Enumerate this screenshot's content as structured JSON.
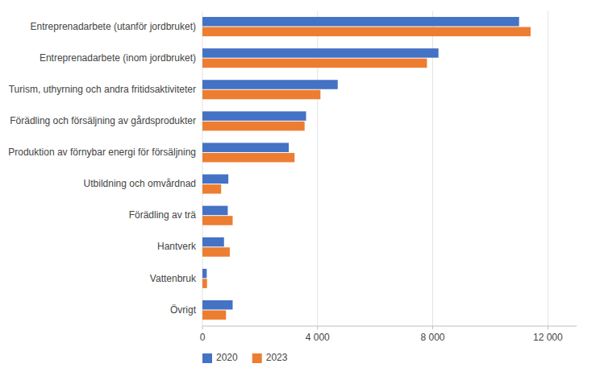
{
  "chart_data": {
    "type": "bar",
    "orientation": "horizontal",
    "categories": [
      "Entreprenadarbete (utanför jordbruket)",
      "Entreprenadarbete (inom jordbruket)",
      "Turism, uthyrning och andra fritidsaktiviteter",
      "Förädling och försäljning av gårdsprodukter",
      "Produktion av förnybar energi för försäljning",
      "Utbildning och omvårdnad",
      "Förädling av trä",
      "Hantverk",
      "Vattenbruk",
      "Övrigt"
    ],
    "series": [
      {
        "name": "2020",
        "color": "#4472C4",
        "values": [
          11000,
          8200,
          4700,
          3600,
          3000,
          900,
          880,
          750,
          150,
          1050
        ]
      },
      {
        "name": "2023",
        "color": "#ED7D31",
        "values": [
          11400,
          7800,
          4100,
          3550,
          3200,
          650,
          1050,
          950,
          160,
          820
        ]
      }
    ],
    "xlim": [
      0,
      13000
    ],
    "xticks": [
      0,
      {
        "value": 4000,
        "label": "4 000"
      },
      {
        "value": 8000,
        "label": "8 000"
      },
      {
        "value": 12000,
        "label": "12 000"
      }
    ],
    "grid": true,
    "legend": "lower left"
  }
}
